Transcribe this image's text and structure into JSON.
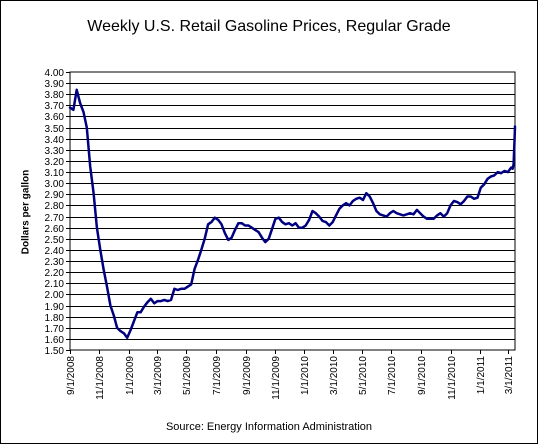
{
  "chart_data": {
    "type": "line",
    "title": "Weekly U.S. Retail Gasoline Prices, Regular Grade",
    "ylabel": "Dollars per gallon",
    "source": "Source:  Energy Information Administration",
    "ylim": [
      1.5,
      4.0
    ],
    "xlim": [
      "2008-09-01",
      "2011-03-15"
    ],
    "grid": true,
    "y_ticks": [
      "1.50",
      "1.60",
      "1.70",
      "1.80",
      "1.90",
      "2.00",
      "2.10",
      "2.20",
      "2.30",
      "2.40",
      "2.50",
      "2.60",
      "2.70",
      "2.80",
      "2.90",
      "3.00",
      "3.10",
      "3.20",
      "3.30",
      "3.40",
      "3.50",
      "3.60",
      "3.70",
      "3.80",
      "3.90",
      "4.00"
    ],
    "x_ticks": [
      {
        "date": "2008-09-01",
        "label": "9/1/2008"
      },
      {
        "date": "2008-11-01",
        "label": "11/1/2008"
      },
      {
        "date": "2009-01-01",
        "label": "1/1/2009"
      },
      {
        "date": "2009-03-01",
        "label": "3/1/2009"
      },
      {
        "date": "2009-05-01",
        "label": "5/1/2009"
      },
      {
        "date": "2009-07-01",
        "label": "7/1/2009"
      },
      {
        "date": "2009-09-01",
        "label": "9/1/2009"
      },
      {
        "date": "2009-11-01",
        "label": "11/1/2009"
      },
      {
        "date": "2010-01-01",
        "label": "1/1/2010"
      },
      {
        "date": "2010-03-01",
        "label": "3/1/2010"
      },
      {
        "date": "2010-05-01",
        "label": "5/1/2010"
      },
      {
        "date": "2010-07-01",
        "label": "7/1/2010"
      },
      {
        "date": "2010-09-01",
        "label": "9/1/2010"
      },
      {
        "date": "2010-11-01",
        "label": "11/1/2010"
      },
      {
        "date": "2011-01-01",
        "label": "1/1/2011"
      },
      {
        "date": "2011-03-01",
        "label": "3/1/2011"
      }
    ],
    "series": [
      {
        "color": "#000080",
        "points": [
          [
            "2008-09-01",
            3.68
          ],
          [
            "2008-09-08",
            3.66
          ],
          [
            "2008-09-15",
            3.84
          ],
          [
            "2008-09-22",
            3.72
          ],
          [
            "2008-09-29",
            3.64
          ],
          [
            "2008-10-06",
            3.5
          ],
          [
            "2008-10-13",
            3.15
          ],
          [
            "2008-10-20",
            2.91
          ],
          [
            "2008-10-27",
            2.6
          ],
          [
            "2008-11-03",
            2.4
          ],
          [
            "2008-11-10",
            2.22
          ],
          [
            "2008-11-17",
            2.07
          ],
          [
            "2008-11-24",
            1.9
          ],
          [
            "2008-12-01",
            1.81
          ],
          [
            "2008-12-08",
            1.7
          ],
          [
            "2008-12-15",
            1.67
          ],
          [
            "2008-12-22",
            1.65
          ],
          [
            "2008-12-29",
            1.61
          ],
          [
            "2009-01-05",
            1.68
          ],
          [
            "2009-01-12",
            1.76
          ],
          [
            "2009-01-19",
            1.84
          ],
          [
            "2009-01-26",
            1.84
          ],
          [
            "2009-02-02",
            1.89
          ],
          [
            "2009-02-09",
            1.93
          ],
          [
            "2009-02-16",
            1.96
          ],
          [
            "2009-02-23",
            1.92
          ],
          [
            "2009-03-02",
            1.94
          ],
          [
            "2009-03-09",
            1.94
          ],
          [
            "2009-03-16",
            1.95
          ],
          [
            "2009-03-23",
            1.94
          ],
          [
            "2009-03-30",
            1.95
          ],
          [
            "2009-04-06",
            2.05
          ],
          [
            "2009-04-13",
            2.04
          ],
          [
            "2009-04-20",
            2.05
          ],
          [
            "2009-04-27",
            2.05
          ],
          [
            "2009-05-04",
            2.07
          ],
          [
            "2009-05-11",
            2.09
          ],
          [
            "2009-05-18",
            2.23
          ],
          [
            "2009-05-25",
            2.31
          ],
          [
            "2009-06-01",
            2.4
          ],
          [
            "2009-06-08",
            2.5
          ],
          [
            "2009-06-15",
            2.63
          ],
          [
            "2009-06-22",
            2.65
          ],
          [
            "2009-06-29",
            2.69
          ],
          [
            "2009-07-06",
            2.67
          ],
          [
            "2009-07-13",
            2.63
          ],
          [
            "2009-07-20",
            2.55
          ],
          [
            "2009-07-27",
            2.49
          ],
          [
            "2009-08-03",
            2.51
          ],
          [
            "2009-08-10",
            2.58
          ],
          [
            "2009-08-17",
            2.64
          ],
          [
            "2009-08-24",
            2.64
          ],
          [
            "2009-08-31",
            2.62
          ],
          [
            "2009-09-07",
            2.62
          ],
          [
            "2009-09-14",
            2.6
          ],
          [
            "2009-09-21",
            2.58
          ],
          [
            "2009-09-28",
            2.56
          ],
          [
            "2009-10-05",
            2.51
          ],
          [
            "2009-10-12",
            2.47
          ],
          [
            "2009-10-19",
            2.5
          ],
          [
            "2009-10-26",
            2.59
          ],
          [
            "2009-11-02",
            2.68
          ],
          [
            "2009-11-09",
            2.69
          ],
          [
            "2009-11-16",
            2.65
          ],
          [
            "2009-11-23",
            2.63
          ],
          [
            "2009-11-30",
            2.64
          ],
          [
            "2009-12-07",
            2.62
          ],
          [
            "2009-12-14",
            2.64
          ],
          [
            "2009-12-21",
            2.6
          ],
          [
            "2009-12-28",
            2.6
          ],
          [
            "2010-01-04",
            2.62
          ],
          [
            "2010-01-11",
            2.67
          ],
          [
            "2010-01-18",
            2.75
          ],
          [
            "2010-01-25",
            2.73
          ],
          [
            "2010-02-01",
            2.7
          ],
          [
            "2010-02-08",
            2.66
          ],
          [
            "2010-02-15",
            2.65
          ],
          [
            "2010-02-22",
            2.62
          ],
          [
            "2010-03-01",
            2.65
          ],
          [
            "2010-03-08",
            2.71
          ],
          [
            "2010-03-15",
            2.77
          ],
          [
            "2010-03-22",
            2.8
          ],
          [
            "2010-03-29",
            2.82
          ],
          [
            "2010-04-05",
            2.8
          ],
          [
            "2010-04-12",
            2.84
          ],
          [
            "2010-04-19",
            2.86
          ],
          [
            "2010-04-26",
            2.87
          ],
          [
            "2010-05-03",
            2.85
          ],
          [
            "2010-05-10",
            2.91
          ],
          [
            "2010-05-17",
            2.88
          ],
          [
            "2010-05-24",
            2.82
          ],
          [
            "2010-05-31",
            2.75
          ],
          [
            "2010-06-07",
            2.72
          ],
          [
            "2010-06-14",
            2.71
          ],
          [
            "2010-06-21",
            2.7
          ],
          [
            "2010-06-28",
            2.73
          ],
          [
            "2010-07-05",
            2.75
          ],
          [
            "2010-07-12",
            2.73
          ],
          [
            "2010-07-19",
            2.72
          ],
          [
            "2010-07-26",
            2.71
          ],
          [
            "2010-08-02",
            2.72
          ],
          [
            "2010-08-09",
            2.73
          ],
          [
            "2010-08-16",
            2.72
          ],
          [
            "2010-08-23",
            2.76
          ],
          [
            "2010-08-30",
            2.73
          ],
          [
            "2010-09-06",
            2.7
          ],
          [
            "2010-09-13",
            2.68
          ],
          [
            "2010-09-20",
            2.68
          ],
          [
            "2010-09-27",
            2.68
          ],
          [
            "2010-10-04",
            2.71
          ],
          [
            "2010-10-11",
            2.73
          ],
          [
            "2010-10-18",
            2.7
          ],
          [
            "2010-10-25",
            2.73
          ],
          [
            "2010-11-01",
            2.8
          ],
          [
            "2010-11-08",
            2.84
          ],
          [
            "2010-11-15",
            2.83
          ],
          [
            "2010-11-22",
            2.81
          ],
          [
            "2010-11-29",
            2.84
          ],
          [
            "2010-12-06",
            2.88
          ],
          [
            "2010-12-13",
            2.88
          ],
          [
            "2010-12-20",
            2.86
          ],
          [
            "2010-12-27",
            2.87
          ],
          [
            "2011-01-03",
            2.96
          ],
          [
            "2011-01-10",
            2.99
          ],
          [
            "2011-01-17",
            3.04
          ],
          [
            "2011-01-24",
            3.06
          ],
          [
            "2011-01-31",
            3.07
          ],
          [
            "2011-02-07",
            3.1
          ],
          [
            "2011-02-14",
            3.09
          ],
          [
            "2011-02-21",
            3.11
          ],
          [
            "2011-02-28",
            3.1
          ],
          [
            "2011-03-07",
            3.14
          ],
          [
            "2011-03-10",
            3.13
          ],
          [
            "2011-03-12",
            3.17
          ],
          [
            "2011-03-14",
            3.38
          ],
          [
            "2011-03-15",
            3.51
          ]
        ]
      }
    ]
  }
}
